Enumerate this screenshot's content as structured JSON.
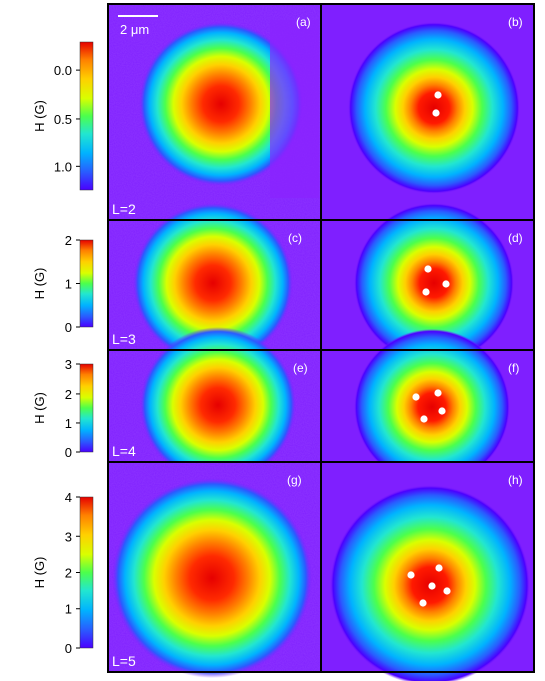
{
  "figure": {
    "scale_bar_label": "2 μm",
    "colorbar_label": "H (G)",
    "panel_labels": [
      "(a)",
      "(b)",
      "(c)",
      "(d)",
      "(e)",
      "(f)",
      "(g)",
      "(h)"
    ],
    "rows": [
      {
        "L_label": "L=2",
        "colorbar_ticks": [
          "1.0",
          "0.5",
          "0.0"
        ],
        "experimental_panel": "(a)",
        "simulated_panel": "(b)",
        "vortex_count": 2
      },
      {
        "L_label": "L=3",
        "colorbar_ticks": [
          "2",
          "1",
          "0"
        ],
        "experimental_panel": "(c)",
        "simulated_panel": "(d)",
        "vortex_count": 3
      },
      {
        "L_label": "L=4",
        "colorbar_ticks": [
          "3",
          "2",
          "1",
          "0"
        ],
        "experimental_panel": "(e)",
        "simulated_panel": "(f)",
        "vortex_count": 4
      },
      {
        "L_label": "L=5",
        "colorbar_ticks": [
          "4",
          "3",
          "2",
          "1",
          "0"
        ],
        "experimental_panel": "(g)",
        "simulated_panel": "(h)",
        "vortex_count": 5
      }
    ],
    "colors": {
      "background_field": "#7f1fff",
      "peak_field": "#ff1a00",
      "vortex_marker": "#ffffff",
      "frame": "#000000"
    },
    "colormap": [
      "#4a00ff",
      "#7f1fff",
      "#2a5bff",
      "#00b3ff",
      "#22e6d0",
      "#4cff4c",
      "#d9ff00",
      "#ffd000",
      "#ff8000",
      "#ff2a00",
      "#e60000"
    ]
  }
}
